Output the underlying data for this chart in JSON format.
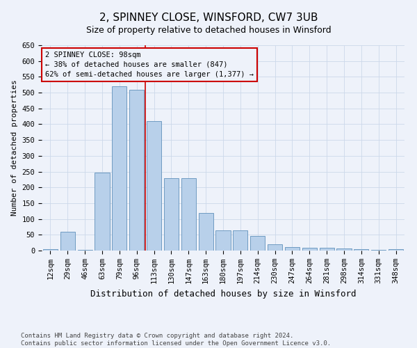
{
  "title": "2, SPINNEY CLOSE, WINSFORD, CW7 3UB",
  "subtitle": "Size of property relative to detached houses in Winsford",
  "xlabel": "Distribution of detached houses by size in Winsford",
  "ylabel": "Number of detached properties",
  "footer_line1": "Contains HM Land Registry data © Crown copyright and database right 2024.",
  "footer_line2": "Contains public sector information licensed under the Open Government Licence v3.0.",
  "categories": [
    "12sqm",
    "29sqm",
    "46sqm",
    "63sqm",
    "79sqm",
    "96sqm",
    "113sqm",
    "130sqm",
    "147sqm",
    "163sqm",
    "180sqm",
    "197sqm",
    "214sqm",
    "230sqm",
    "247sqm",
    "264sqm",
    "281sqm",
    "298sqm",
    "314sqm",
    "331sqm",
    "348sqm"
  ],
  "values": [
    5,
    60,
    2,
    247,
    520,
    510,
    410,
    230,
    230,
    120,
    63,
    63,
    46,
    20,
    12,
    8,
    8,
    7,
    5,
    2,
    5
  ],
  "bar_color": "#b8d0ea",
  "bar_edge_color": "#6090bb",
  "grid_color": "#ccd8ea",
  "background_color": "#eef2fa",
  "vline_x": 5.5,
  "vline_color": "#cc0000",
  "annotation_text": "2 SPINNEY CLOSE: 98sqm\n← 38% of detached houses are smaller (847)\n62% of semi-detached houses are larger (1,377) →",
  "annotation_box_color": "#cc0000",
  "ylim": [
    0,
    650
  ],
  "yticks": [
    0,
    50,
    100,
    150,
    200,
    250,
    300,
    350,
    400,
    450,
    500,
    550,
    600,
    650
  ],
  "title_fontsize": 11,
  "subtitle_fontsize": 9,
  "xlabel_fontsize": 9,
  "ylabel_fontsize": 8,
  "tick_fontsize": 7.5,
  "annotation_fontsize": 7.5,
  "footer_fontsize": 6.5
}
